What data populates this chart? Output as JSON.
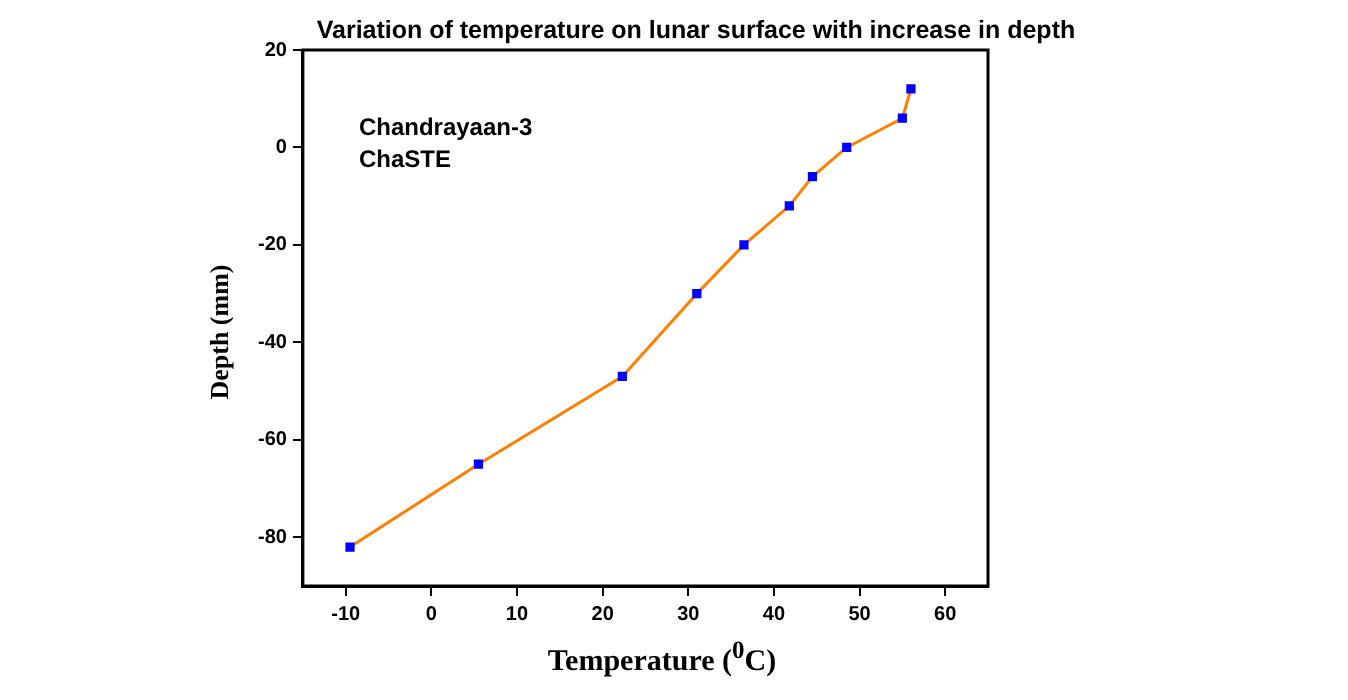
{
  "chart_data": {
    "type": "line",
    "title": "Variation of temperature on lunar surface with increase in depth",
    "xlabel": "Temperature ($^{0}$C)",
    "ylabel": "Depth (mm)",
    "annotations": [
      "Chandrayaan-3",
      "ChaSTE"
    ],
    "x": [
      -9.5,
      5.5,
      22.3,
      31,
      36.5,
      41.8,
      44.5,
      48.5,
      55,
      56
    ],
    "series": [
      {
        "color": "#ff8000",
        "colors": [
          "#0000ff",
          "#0000ff",
          "#0000ff",
          "#0000ff",
          "#0000ff",
          "#0000ff",
          "#0000ff",
          "#0000ff",
          "#0000ff",
          "#0000ff"
        ],
        "values": [
          -82,
          -65,
          -47,
          -30,
          -20,
          -12,
          -6,
          0,
          6,
          12
        ]
      }
    ],
    "xlim": [
      -15,
      65
    ],
    "xticks": [
      -10,
      0,
      10,
      20,
      30,
      40,
      50,
      60
    ],
    "ylim": [
      -90,
      20
    ],
    "yticks": [
      -80,
      -60,
      -40,
      -20,
      0,
      20
    ],
    "grid": false,
    "legend": false,
    "marker": "square",
    "line_style": "solid"
  }
}
